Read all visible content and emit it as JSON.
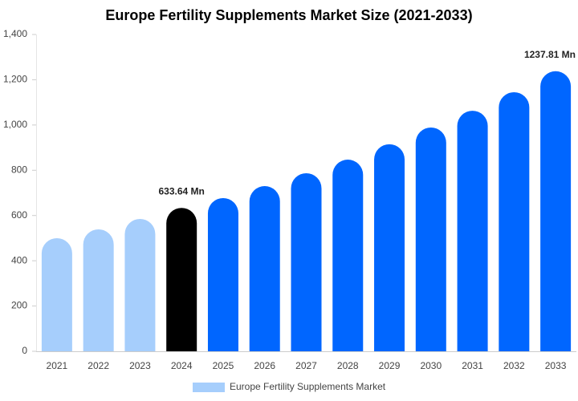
{
  "chart_data": {
    "type": "bar",
    "title": "Europe Fertility Supplements Market Size (2021-2033)",
    "categories": [
      "2021",
      "2022",
      "2023",
      "2024",
      "2025",
      "2026",
      "2027",
      "2028",
      "2029",
      "2030",
      "2031",
      "2032",
      "2033"
    ],
    "series": [
      {
        "name": "Europe Fertility Supplements Market",
        "color": "#a6cefc",
        "colors": [
          "#a6cefc",
          "#a6cefc",
          "#a6cefc",
          "#000000",
          "#0066ff",
          "#0066ff",
          "#0066ff",
          "#0066ff",
          "#0066ff",
          "#0066ff",
          "#0066ff",
          "#0066ff",
          "#0066ff"
        ],
        "values": [
          500,
          539,
          585,
          633.64,
          677,
          730,
          787,
          847,
          915,
          989,
          1063,
          1145,
          1237.81
        ],
        "value_labels": [
          null,
          null,
          null,
          "633.64 Mn",
          null,
          null,
          null,
          null,
          null,
          null,
          null,
          null,
          "1237.81 Mn"
        ]
      }
    ],
    "ylim": [
      0,
      1400
    ],
    "yticks": [
      0,
      200,
      400,
      600,
      800,
      {
        "value": 1000,
        "label": "1,000"
      },
      {
        "value": 1200,
        "label": "1,200"
      },
      {
        "value": 1400,
        "label": "1,400"
      }
    ],
    "grid": false
  }
}
